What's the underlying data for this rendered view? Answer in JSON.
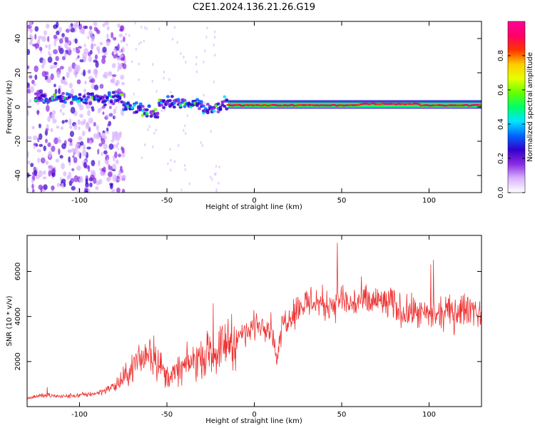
{
  "title": "C2E1.2024.136.21.26.G19",
  "colors": {
    "snr_line": "#ee3333",
    "axis": "#000000",
    "spectrogram_band": "#f07070",
    "colormap": [
      "#ffffff",
      "#d9b3ff",
      "#8a2be2",
      "#3300cc",
      "#0066ff",
      "#00e5ff",
      "#00ff66",
      "#66ff00",
      "#e6ff00",
      "#ffcc00",
      "#ff3300",
      "#ff0066",
      "#ff0099"
    ]
  },
  "chart_data": [
    {
      "type": "heatmap",
      "title": "C2E1.2024.136.21.26.G19",
      "xlabel": "Height of straight line (km)",
      "ylabel": "Frequency (Hz)",
      "xlim": [
        -130,
        130
      ],
      "ylim": [
        -50,
        50
      ],
      "xticks": [
        -100,
        -50,
        0,
        50,
        100
      ],
      "yticks": [
        -40,
        -20,
        0,
        20,
        40
      ],
      "colorbar": {
        "label": "Normalized spectral amplitude",
        "range": [
          0,
          1
        ],
        "ticks": [
          "0.0",
          "0.2",
          "0.4",
          "0.6",
          "0.8"
        ]
      },
      "features": {
        "dominant_frequency_band_hz": [
          0,
          4
        ],
        "stable_tone_frequency_hz": 1,
        "stable_tone_height_range_km": [
          -15,
          130
        ],
        "noise_region_height_range_km": [
          -130,
          -80
        ]
      }
    },
    {
      "type": "line",
      "xlabel": "Height of straight line (km)",
      "ylabel": "SNR (10 * v/v)",
      "xlim": [
        -130,
        130
      ],
      "ylim": [
        0,
        7600
      ],
      "xticks": [
        -100,
        -50,
        0,
        50,
        100
      ],
      "yticks": [
        2000,
        4000,
        6000
      ],
      "series": [
        {
          "x": [
            -130,
            -120,
            -110,
            -100,
            -90,
            -80,
            -75,
            -70,
            -65,
            -60,
            -55,
            -50,
            -45,
            -40,
            -35,
            -30,
            -25,
            -20,
            -15,
            -12,
            -8,
            -4,
            0,
            5,
            10,
            13,
            16,
            20,
            25,
            30,
            35,
            40,
            45,
            50,
            55,
            60,
            65,
            70,
            75,
            80,
            85,
            90,
            95,
            100,
            105,
            110,
            115,
            120,
            125,
            130
          ],
          "y": [
            400,
            500,
            450,
            500,
            600,
            900,
            1200,
            1700,
            2100,
            2500,
            2000,
            1300,
            1500,
            1800,
            2000,
            2200,
            2400,
            2500,
            3000,
            2800,
            3200,
            3300,
            3600,
            3700,
            3500,
            2000,
            3700,
            4000,
            4400,
            4600,
            4700,
            4500,
            4600,
            4800,
            4500,
            4700,
            4600,
            4700,
            4600,
            4500,
            4200,
            4200,
            4100,
            4000,
            4000,
            4200,
            4200,
            4300,
            4400,
            4000
          ]
        }
      ]
    }
  ]
}
